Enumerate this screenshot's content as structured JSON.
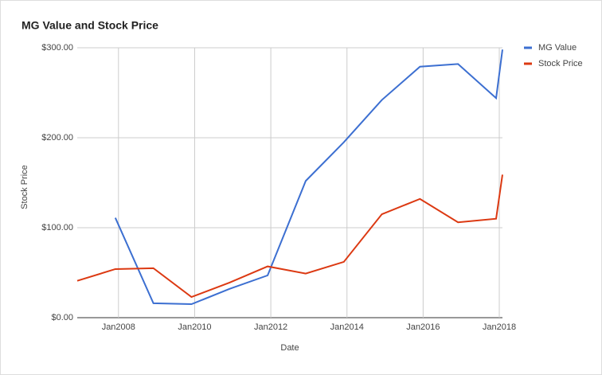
{
  "chart_data": {
    "type": "line",
    "title": "MG Value and Stock Price",
    "x_label": "Date",
    "y_label": "Stock Price",
    "x": [
      "2006-12",
      "2007-12",
      "2008-12",
      "2009-12",
      "2010-12",
      "2011-12",
      "2012-12",
      "2013-12",
      "2014-12",
      "2015-12",
      "2016-12",
      "2017-12",
      "2018-02"
    ],
    "series": [
      {
        "name": "MG Value",
        "color": "#3c6fd1",
        "values": [
          null,
          111,
          16,
          15,
          32,
          47,
          152,
          195,
          242,
          279,
          282,
          244,
          298
        ]
      },
      {
        "name": "Stock Price",
        "color": "#dc3912",
        "values": [
          41,
          54,
          55,
          23,
          39,
          57,
          49,
          62,
          115,
          132,
          106,
          110,
          159
        ]
      }
    ],
    "xlim": [
      "2006-12",
      "2018-02"
    ],
    "xticks": [
      {
        "value": "2008-01",
        "label": "Jan2008"
      },
      {
        "value": "2010-01",
        "label": "Jan2010"
      },
      {
        "value": "2012-01",
        "label": "Jan2012"
      },
      {
        "value": "2014-01",
        "label": "Jan2014"
      },
      {
        "value": "2016-01",
        "label": "Jan2016"
      },
      {
        "value": "2018-01",
        "label": "Jan2018"
      }
    ],
    "ylim": [
      0,
      300
    ],
    "yticks": [
      {
        "value": 0,
        "label": "$0.00"
      },
      {
        "value": 100,
        "label": "$100.00"
      },
      {
        "value": 200,
        "label": "$200.00"
      },
      {
        "value": 300,
        "label": "$300.00"
      }
    ],
    "grid": true,
    "legend": "right"
  }
}
